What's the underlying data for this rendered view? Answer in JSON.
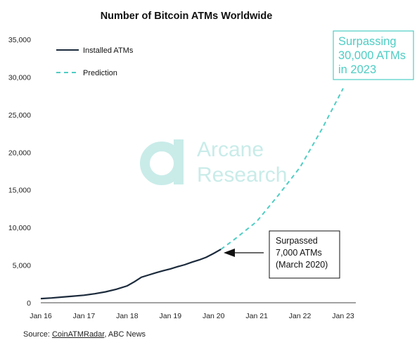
{
  "chart_data": {
    "type": "line",
    "title": "Number of Bitcoin ATMs Worldwide",
    "xlabel": "",
    "ylabel": "",
    "x_ticks": [
      "Jan 16",
      "Jan 17",
      "Jan 18",
      "Jan 19",
      "Jan 20",
      "Jan 21",
      "Jan 22",
      "Jan 23"
    ],
    "y_ticks": [
      "0",
      "5,000",
      "10,000",
      "15,000",
      "20,000",
      "25,000",
      "30,000",
      "35,000"
    ],
    "xlim": [
      2016.0,
      2023.0
    ],
    "ylim": [
      0,
      35000
    ],
    "grid": false,
    "legend_position": "top-left",
    "series": [
      {
        "name": "Installed ATMs",
        "style": "solid",
        "color": "#1c2b3c",
        "points": [
          [
            2016.0,
            550
          ],
          [
            2016.25,
            640
          ],
          [
            2016.5,
            760
          ],
          [
            2016.75,
            880
          ],
          [
            2017.0,
            1000
          ],
          [
            2017.25,
            1200
          ],
          [
            2017.5,
            1450
          ],
          [
            2017.75,
            1800
          ],
          [
            2018.0,
            2250
          ],
          [
            2018.17,
            2800
          ],
          [
            2018.33,
            3400
          ],
          [
            2018.5,
            3700
          ],
          [
            2018.67,
            4000
          ],
          [
            2018.83,
            4250
          ],
          [
            2019.0,
            4500
          ],
          [
            2019.17,
            4800
          ],
          [
            2019.33,
            5050
          ],
          [
            2019.5,
            5400
          ],
          [
            2019.67,
            5700
          ],
          [
            2019.83,
            6050
          ],
          [
            2020.0,
            6550
          ],
          [
            2020.17,
            7100
          ]
        ]
      },
      {
        "name": "Prediction",
        "style": "dashed",
        "color": "#4ecdc4",
        "points": [
          [
            2020.17,
            7100
          ],
          [
            2020.5,
            8500
          ],
          [
            2021.0,
            10800
          ],
          [
            2021.5,
            14300
          ],
          [
            2022.0,
            18000
          ],
          [
            2022.5,
            23000
          ],
          [
            2023.0,
            28500
          ]
        ]
      }
    ],
    "annotations": [
      {
        "lines": [
          "Surpassed",
          "7,000 ATMs",
          "(March 2020)"
        ],
        "color": "#111111",
        "arrow_to": [
          2020.17,
          7100
        ]
      },
      {
        "lines": [
          "Surpassing",
          "30,000 ATMs",
          "in 2023"
        ],
        "color": "#4ecdc4"
      }
    ]
  },
  "watermark": {
    "line1": "Arcane",
    "line2": "Research",
    "color": "#c9ece9"
  },
  "source": {
    "prefix": "Source: ",
    "link": "CoinATMRadar",
    "rest": ", ABC News"
  },
  "colors": {
    "installed": "#1c2b3c",
    "prediction": "#4ecdc4",
    "axis": "#333333"
  }
}
